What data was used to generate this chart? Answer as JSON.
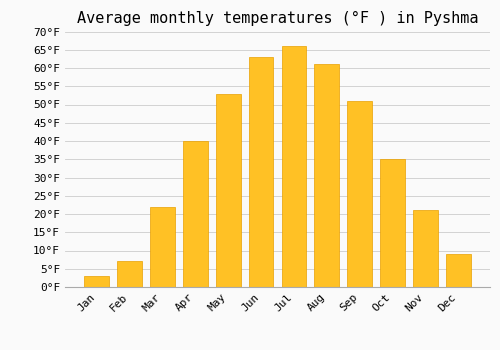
{
  "title": "Average monthly temperatures (°F ) in Pyshma",
  "months": [
    "Jan",
    "Feb",
    "Mar",
    "Apr",
    "May",
    "Jun",
    "Jul",
    "Aug",
    "Sep",
    "Oct",
    "Nov",
    "Dec"
  ],
  "values": [
    3,
    7,
    22,
    40,
    53,
    63,
    66,
    61,
    51,
    35,
    21,
    9
  ],
  "bar_color": "#FFC125",
  "bar_edge_color": "#E8A000",
  "background_color": "#FAFAFA",
  "grid_color": "#CCCCCC",
  "ylim": [
    0,
    70
  ],
  "yticks": [
    0,
    5,
    10,
    15,
    20,
    25,
    30,
    35,
    40,
    45,
    50,
    55,
    60,
    65,
    70
  ],
  "title_fontsize": 11,
  "tick_fontsize": 8,
  "font_family": "monospace"
}
